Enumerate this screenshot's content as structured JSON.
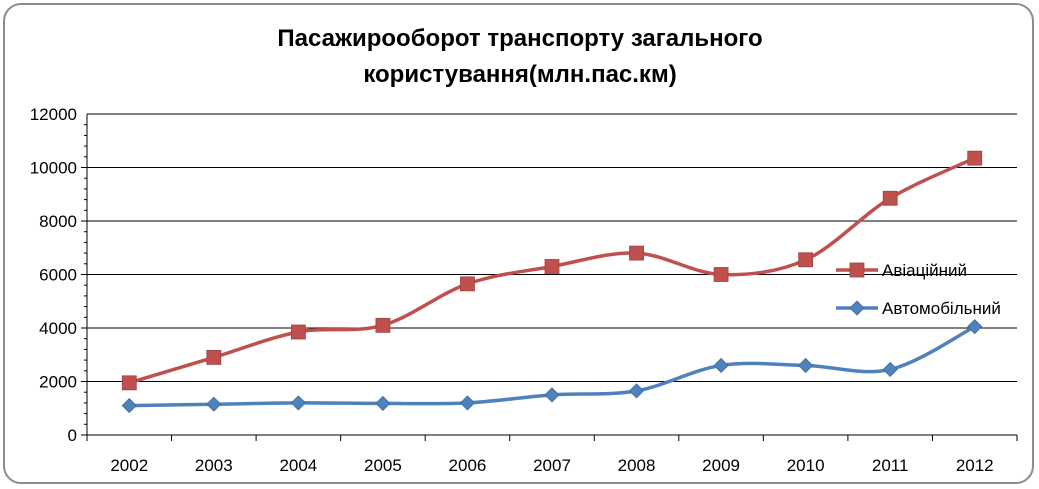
{
  "chart_data": {
    "type": "line",
    "title_lines": [
      "Пасажирооборот транспорту загального",
      "користування(млн.пас.км)"
    ],
    "categories": [
      "2002",
      "2003",
      "2004",
      "2005",
      "2006",
      "2007",
      "2008",
      "2009",
      "2010",
      "2011",
      "2012"
    ],
    "series": [
      {
        "name": "Авіаційний",
        "color": "#c0504d",
        "marker": "square",
        "values": [
          1950,
          2900,
          3850,
          4100,
          5650,
          6300,
          6800,
          6000,
          6550,
          8850,
          10350
        ]
      },
      {
        "name": "Автомобільний",
        "color": "#4f81bd",
        "marker": "diamond",
        "values": [
          1100,
          1150,
          1200,
          1180,
          1200,
          1500,
          1650,
          2600,
          2600,
          2450,
          4050
        ]
      }
    ],
    "ylim": [
      0,
      12000
    ],
    "yticks": [
      "0",
      "2000",
      "4000",
      "6000",
      "8000",
      "10000",
      "12000"
    ],
    "grid": true,
    "legend_position": "right"
  }
}
